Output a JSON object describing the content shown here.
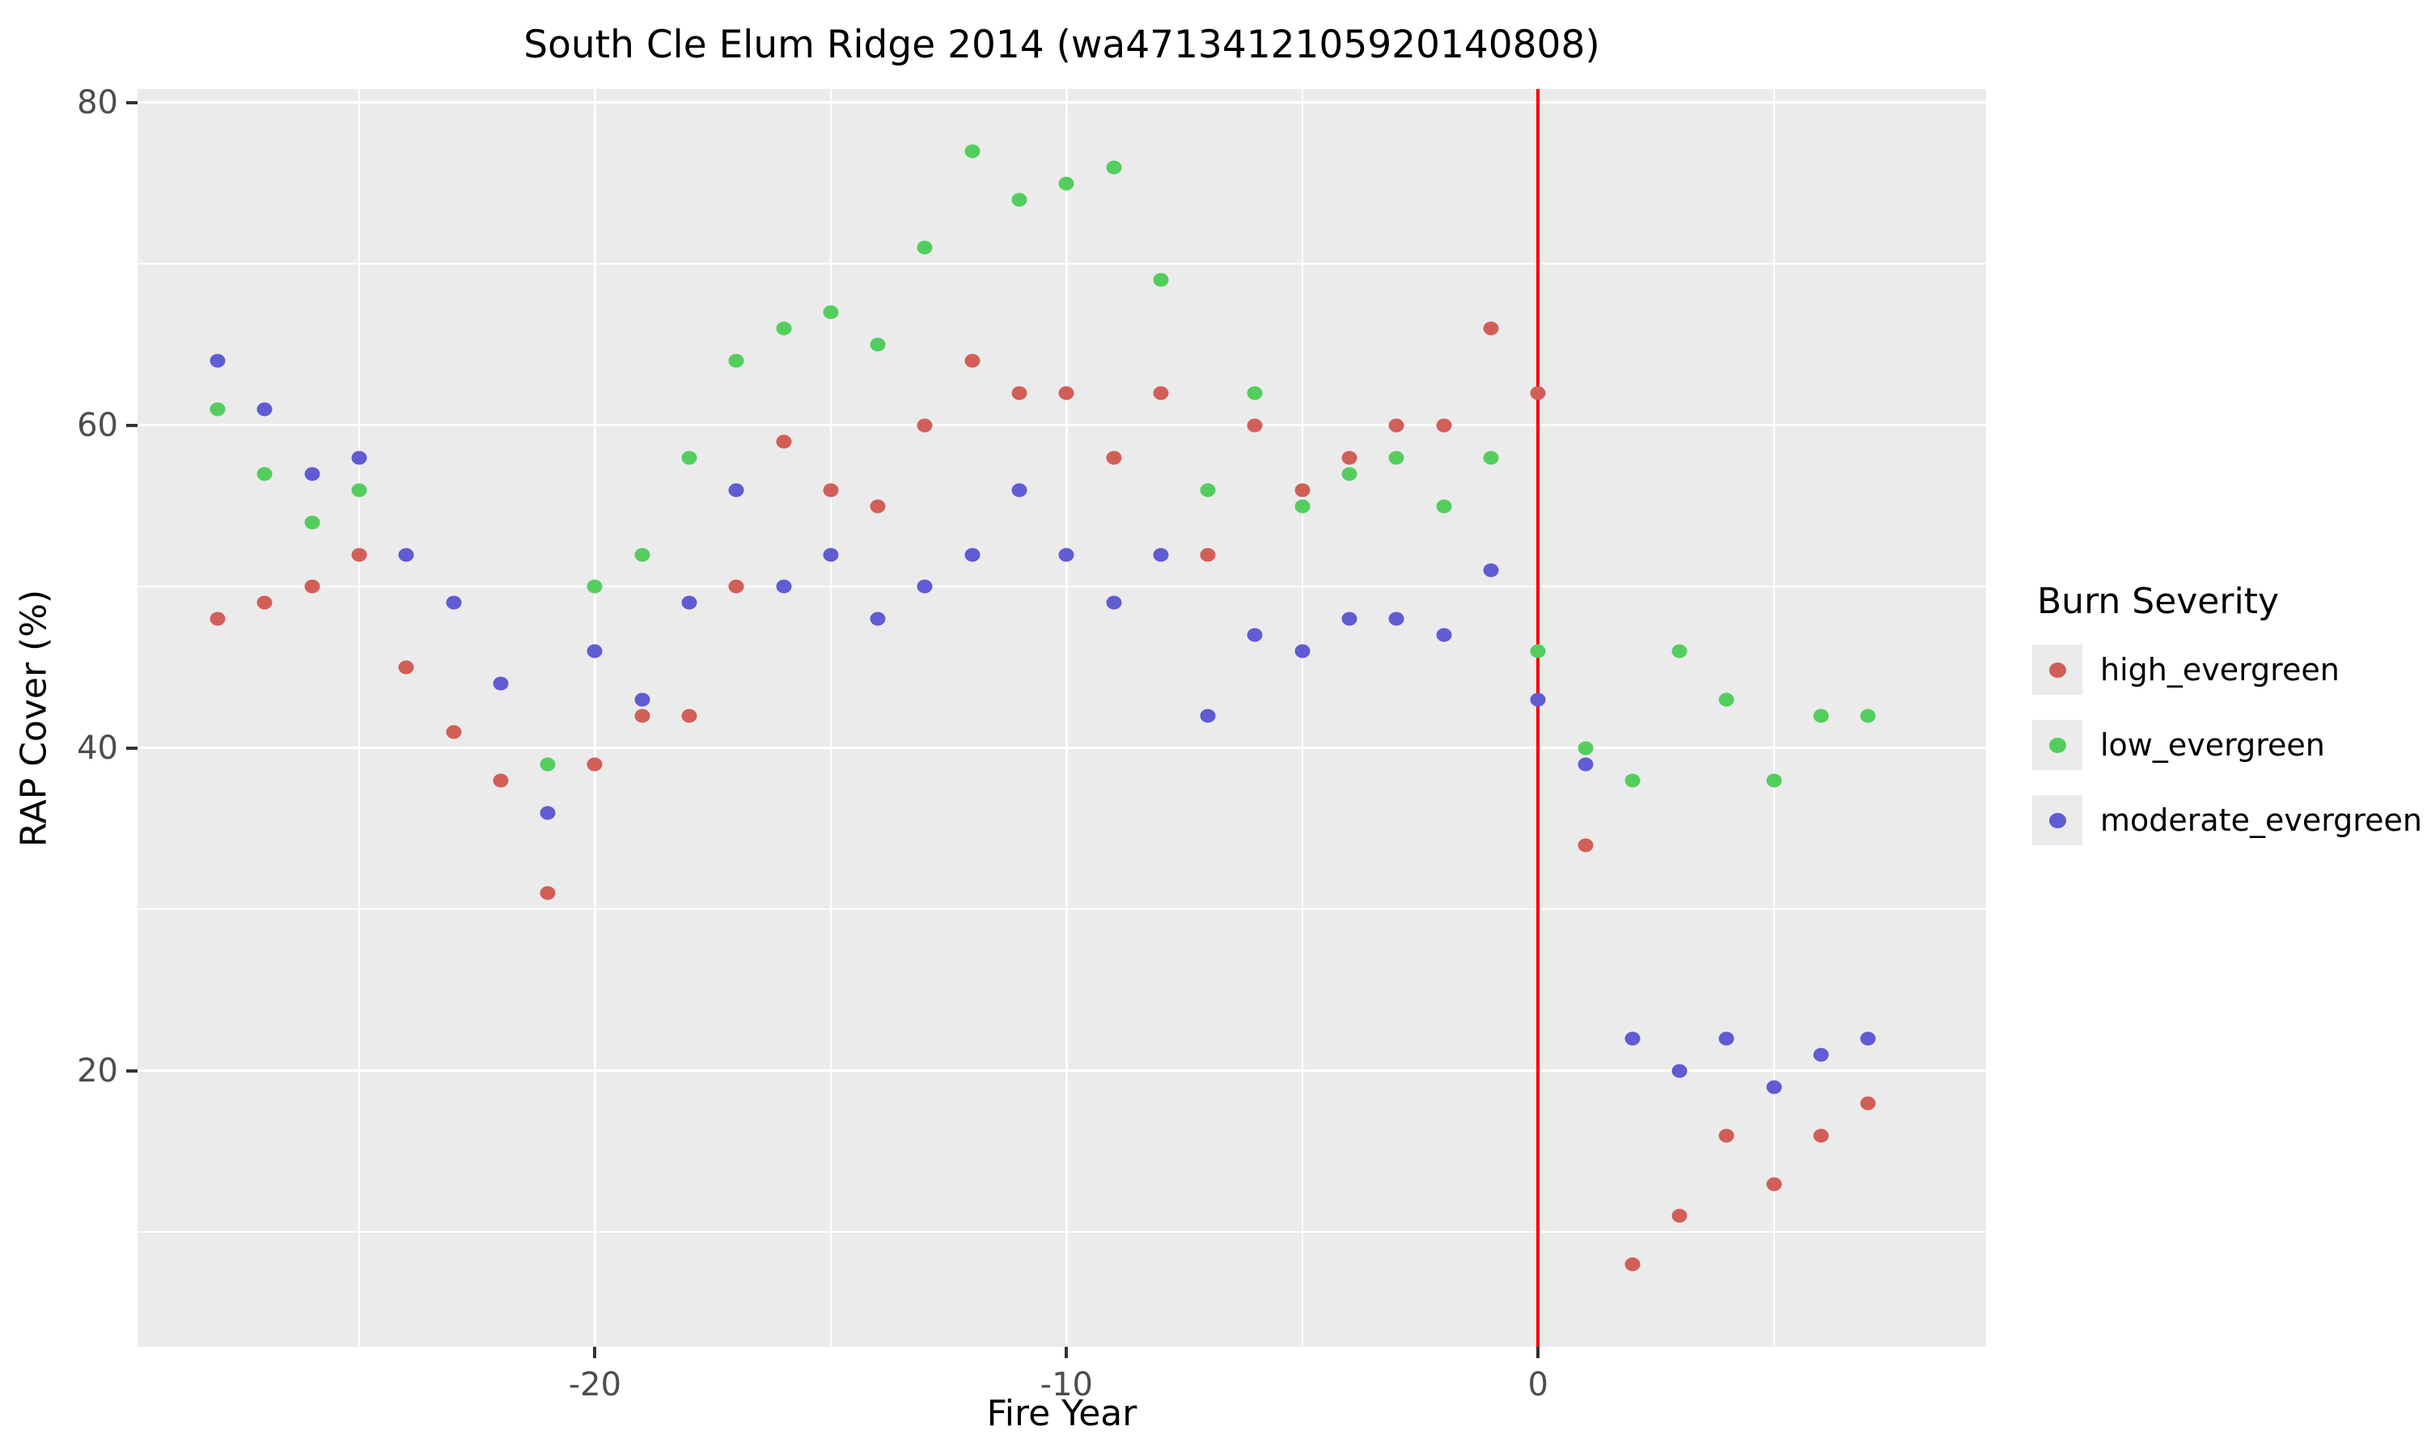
{
  "title": "South Cle Elum Ridge 2014 (wa4713412105920140808)",
  "x_axis": {
    "label": "Fire Year",
    "major_ticks": [
      -20,
      -10,
      0
    ],
    "minor_ticks": [
      -25,
      -15,
      -5,
      5
    ],
    "range": [
      -29.7,
      9.5
    ]
  },
  "y_axis": {
    "label": "RAP Cover (%)",
    "major_ticks": [
      20,
      40,
      60,
      80
    ],
    "minor_ticks": [
      10,
      30,
      50,
      70
    ],
    "range": [
      2.9,
      80.85
    ]
  },
  "legend": {
    "title": "Burn Severity",
    "items": [
      {
        "label": "high_evergreen",
        "color": "#d15f58"
      },
      {
        "label": "low_evergreen",
        "color": "#53ce5e"
      },
      {
        "label": "moderate_evergreen",
        "color": "#5f5cd4"
      }
    ]
  },
  "colors": {
    "panel": "#ebebeb",
    "grid": "#ffffff",
    "tick_text": "#4d4d4d",
    "vline": "#ff0000"
  },
  "chart_data": {
    "type": "scatter",
    "xlabel": "Fire Year",
    "ylabel": "RAP Cover (%)",
    "xlim": [
      -29.7,
      9.5
    ],
    "ylim": [
      2.9,
      80.85
    ],
    "grid": true,
    "legend_position": "right",
    "vline_x": 0,
    "series": [
      {
        "name": "high_evergreen",
        "color": "#d15f58",
        "points": [
          [
            -28,
            48
          ],
          [
            -27,
            49
          ],
          [
            -26,
            50
          ],
          [
            -25,
            52
          ],
          [
            -24,
            45
          ],
          [
            -23,
            41
          ],
          [
            -22,
            38
          ],
          [
            -21,
            31
          ],
          [
            -20,
            39
          ],
          [
            -19,
            42
          ],
          [
            -18,
            42
          ],
          [
            -17,
            50
          ],
          [
            -16,
            59
          ],
          [
            -15,
            56
          ],
          [
            -14,
            55
          ],
          [
            -13,
            60
          ],
          [
            -12,
            64
          ],
          [
            -11,
            62
          ],
          [
            -10,
            62
          ],
          [
            -9,
            58
          ],
          [
            -8,
            62
          ],
          [
            -7,
            52
          ],
          [
            -6,
            60
          ],
          [
            -5,
            56
          ],
          [
            -4,
            58
          ],
          [
            -3,
            60
          ],
          [
            -2,
            60
          ],
          [
            -1,
            66
          ],
          [
            0,
            62
          ],
          [
            1,
            34
          ],
          [
            2,
            8
          ],
          [
            3,
            11
          ],
          [
            4,
            16
          ],
          [
            5,
            13
          ],
          [
            6,
            16
          ],
          [
            7,
            18
          ]
        ]
      },
      {
        "name": "low_evergreen",
        "color": "#53ce5e",
        "points": [
          [
            -28,
            61
          ],
          [
            -27,
            57
          ],
          [
            -26,
            54
          ],
          [
            -25,
            56
          ],
          [
            -21,
            39
          ],
          [
            -20,
            50
          ],
          [
            -19,
            52
          ],
          [
            -18,
            58
          ],
          [
            -17,
            64
          ],
          [
            -16,
            66
          ],
          [
            -15,
            67
          ],
          [
            -14,
            65
          ],
          [
            -13,
            71
          ],
          [
            -12,
            77
          ],
          [
            -11,
            74
          ],
          [
            -10,
            75
          ],
          [
            -9,
            76
          ],
          [
            -8,
            69
          ],
          [
            -7,
            56
          ],
          [
            -6,
            62
          ],
          [
            -5,
            55
          ],
          [
            -4,
            57
          ],
          [
            -3,
            58
          ],
          [
            -2,
            55
          ],
          [
            -1,
            58
          ],
          [
            0,
            46
          ],
          [
            1,
            40
          ],
          [
            2,
            38
          ],
          [
            3,
            46
          ],
          [
            4,
            43
          ],
          [
            5,
            38
          ],
          [
            6,
            42
          ],
          [
            7,
            42
          ]
        ]
      },
      {
        "name": "moderate_evergreen",
        "color": "#5f5cd4",
        "points": [
          [
            -28,
            64
          ],
          [
            -27,
            61
          ],
          [
            -26,
            57
          ],
          [
            -25,
            58
          ],
          [
            -24,
            52
          ],
          [
            -23,
            49
          ],
          [
            -22,
            44
          ],
          [
            -21,
            36
          ],
          [
            -20,
            46
          ],
          [
            -19,
            43
          ],
          [
            -18,
            49
          ],
          [
            -17,
            56
          ],
          [
            -16,
            50
          ],
          [
            -15,
            52
          ],
          [
            -14,
            48
          ],
          [
            -13,
            50
          ],
          [
            -12,
            52
          ],
          [
            -11,
            56
          ],
          [
            -10,
            52
          ],
          [
            -9,
            49
          ],
          [
            -8,
            52
          ],
          [
            -7,
            42
          ],
          [
            -6,
            47
          ],
          [
            -5,
            46
          ],
          [
            -4,
            48
          ],
          [
            -3,
            48
          ],
          [
            -2,
            47
          ],
          [
            -1,
            51
          ],
          [
            0,
            43
          ],
          [
            1,
            39
          ],
          [
            2,
            22
          ],
          [
            3,
            20
          ],
          [
            4,
            22
          ],
          [
            5,
            19
          ],
          [
            6,
            21
          ],
          [
            7,
            22
          ]
        ]
      }
    ]
  }
}
